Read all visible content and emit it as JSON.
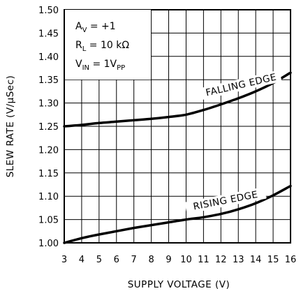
{
  "chart_data": {
    "type": "line",
    "xlabel": "SUPPLY VOLTAGE (V)",
    "ylabel": "SLEW RATE (V/µSec)",
    "xlim": [
      3,
      16
    ],
    "ylim": [
      1.0,
      1.5
    ],
    "grid": true,
    "x_ticks": [
      "3",
      "4",
      "5",
      "6",
      "7",
      "8",
      "9",
      "10",
      "11",
      "12",
      "13",
      "14",
      "15",
      "16"
    ],
    "y_ticks": [
      "1.00",
      "1.05",
      "1.10",
      "1.15",
      "1.20",
      "1.25",
      "1.30",
      "1.35",
      "1.40",
      "1.45",
      "1.50"
    ],
    "conditions": [
      {
        "main": "A",
        "sub": "V",
        "rest": " = +1"
      },
      {
        "main": "R",
        "sub": "L",
        "rest": " = 10 kΩ"
      },
      {
        "main": "V",
        "sub": "IN",
        "rest": " = 1V",
        "sub2": "PP"
      }
    ],
    "series": [
      {
        "name": "FALLING EDGE",
        "x": [
          3,
          4,
          5,
          6,
          7,
          8,
          9,
          10,
          11,
          12,
          13,
          14,
          15,
          16
        ],
        "values": [
          1.25,
          1.253,
          1.257,
          1.26,
          1.263,
          1.266,
          1.27,
          1.275,
          1.285,
          1.297,
          1.31,
          1.325,
          1.343,
          1.365
        ]
      },
      {
        "name": "RISING EDGE",
        "x": [
          3,
          4,
          5,
          6,
          7,
          8,
          9,
          10,
          11,
          12,
          13,
          14,
          15,
          16
        ],
        "values": [
          1.0,
          1.01,
          1.018,
          1.025,
          1.032,
          1.038,
          1.044,
          1.05,
          1.055,
          1.062,
          1.072,
          1.085,
          1.102,
          1.122
        ]
      }
    ]
  }
}
